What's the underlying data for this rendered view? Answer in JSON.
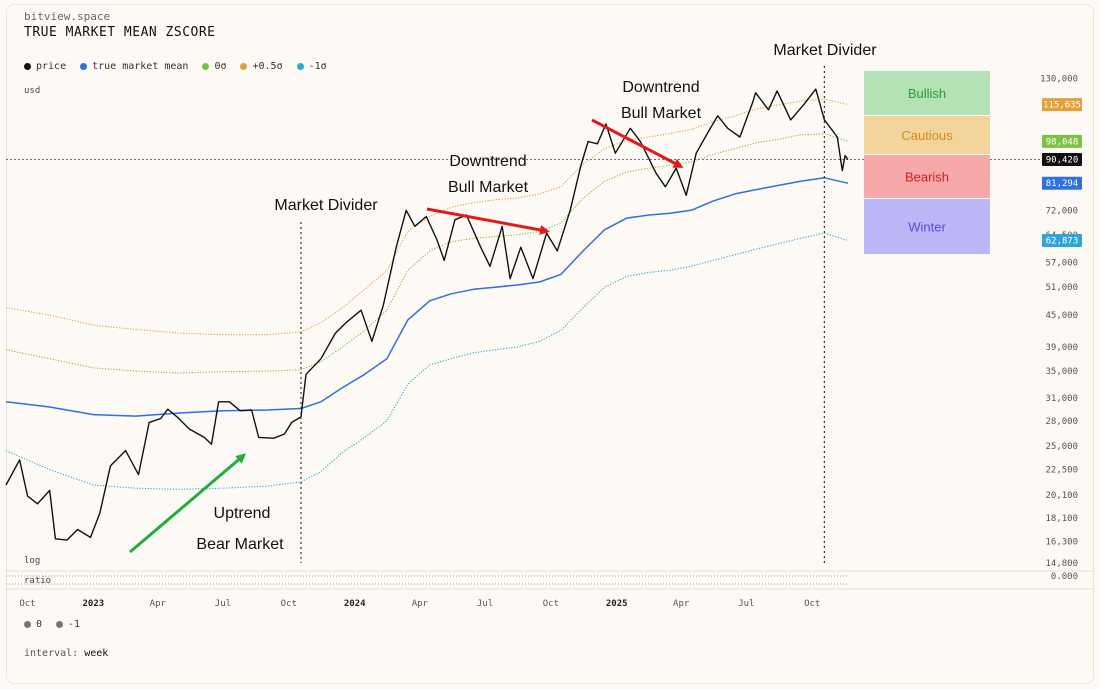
{
  "site": "bitview.space",
  "title": "TRUE MARKET MEAN ZSCORE",
  "unit": "usd",
  "scale_label": "log",
  "ratio_label": "ratio",
  "ratio_zero": "0.000",
  "interval_label": "interval:",
  "interval_value": "week",
  "legend": [
    {
      "label": "price",
      "color": "#111111"
    },
    {
      "label": "true market mean",
      "color": "#2f6fe0"
    },
    {
      "label": "0σ",
      "color": "#7cc241"
    },
    {
      "label": "+0.5σ",
      "color": "#e0a13a"
    },
    {
      "label": "-1σ",
      "color": "#2fa6d6"
    }
  ],
  "bottom_legend": [
    {
      "label": "0",
      "color": "#777777"
    },
    {
      "label": "-1",
      "color": "#777777"
    }
  ],
  "zones": [
    {
      "label": "Bullish",
      "bg": "#b4e2b6",
      "fg": "#2a9a3a"
    },
    {
      "label": "Cautious",
      "bg": "#f3d49c",
      "fg": "#d28f1e"
    },
    {
      "label": "Bearish",
      "bg": "#f7a9a9",
      "fg": "#d61c1c"
    },
    {
      "label": "Winter",
      "bg": "#bdb7f7",
      "fg": "#5a48d8"
    }
  ],
  "annotations": {
    "market_divider_1": "Market Divider",
    "market_divider_2": "Market Divider",
    "uptrend_l1": "Uptrend",
    "uptrend_l2": "Bear Market",
    "downtrend1_l1": "Downtrend",
    "downtrend1_l2": "Bull Market",
    "downtrend2_l1": "Downtrend",
    "downtrend2_l2": "Bull Market"
  },
  "chart_data": {
    "type": "line",
    "yscale": "log",
    "ylim": [
      14800,
      140000
    ],
    "x_range": [
      "2022-09-01",
      "2025-11-20"
    ],
    "x_ticks": [
      {
        "date": "2022-10-01",
        "label": "Oct"
      },
      {
        "date": "2023-01-01",
        "label": "2023",
        "year": true
      },
      {
        "date": "2023-04-01",
        "label": "Apr"
      },
      {
        "date": "2023-07-01",
        "label": "Jul"
      },
      {
        "date": "2023-10-01",
        "label": "Oct"
      },
      {
        "date": "2024-01-01",
        "label": "2024",
        "year": true
      },
      {
        "date": "2024-04-01",
        "label": "Apr"
      },
      {
        "date": "2024-07-01",
        "label": "Jul"
      },
      {
        "date": "2024-10-01",
        "label": "Oct"
      },
      {
        "date": "2025-01-01",
        "label": "2025",
        "year": true
      },
      {
        "date": "2025-04-01",
        "label": "Apr"
      },
      {
        "date": "2025-07-01",
        "label": "Jul"
      },
      {
        "date": "2025-10-01",
        "label": "Oct"
      }
    ],
    "y_ticks": [
      130000,
      72000,
      64500,
      57000,
      51000,
      45000,
      39000,
      35000,
      31000,
      28000,
      25000,
      22500,
      20100,
      18100,
      16300,
      14800
    ],
    "y_tick_labels": [
      "130,000",
      "72,000",
      "64,500",
      "57,000",
      "51,000",
      "45,000",
      "39,000",
      "35,000",
      "31,000",
      "28,000",
      "25,000",
      "22,500",
      "20,100",
      "18,100",
      "16,300",
      "14,800"
    ],
    "last_values": [
      {
        "label": "115,635",
        "value": 115635,
        "color": "#e0a13a"
      },
      {
        "label": "98,048",
        "value": 98048,
        "color": "#7cc241"
      },
      {
        "label": "90,420",
        "value": 90420,
        "color": "#111111"
      },
      {
        "label": "81,294",
        "value": 81294,
        "color": "#2f6fe0"
      },
      {
        "label": "62,873",
        "value": 62873,
        "color": "#2fa6d6"
      }
    ],
    "current_price_line": 90420,
    "market_dividers": [
      "2023-10-18",
      "2025-10-18"
    ],
    "series": [
      {
        "name": "price",
        "color": "#111111",
        "style": "solid",
        "points": [
          [
            "2022-09-01",
            21000
          ],
          [
            "2022-09-20",
            23500
          ],
          [
            "2022-10-01",
            20000
          ],
          [
            "2022-10-15",
            19300
          ],
          [
            "2022-11-01",
            20500
          ],
          [
            "2022-11-09",
            16500
          ],
          [
            "2022-11-25",
            16400
          ],
          [
            "2022-12-10",
            17200
          ],
          [
            "2022-12-28",
            16600
          ],
          [
            "2023-01-10",
            18500
          ],
          [
            "2023-01-25",
            22900
          ],
          [
            "2023-02-15",
            24500
          ],
          [
            "2023-03-05",
            22000
          ],
          [
            "2023-03-20",
            27800
          ],
          [
            "2023-04-05",
            28300
          ],
          [
            "2023-04-15",
            29500
          ],
          [
            "2023-04-28",
            28500
          ],
          [
            "2023-05-15",
            27000
          ],
          [
            "2023-06-05",
            26000
          ],
          [
            "2023-06-15",
            25200
          ],
          [
            "2023-06-25",
            30500
          ],
          [
            "2023-07-10",
            30500
          ],
          [
            "2023-07-25",
            29300
          ],
          [
            "2023-08-10",
            29400
          ],
          [
            "2023-08-20",
            26000
          ],
          [
            "2023-09-10",
            25900
          ],
          [
            "2023-09-25",
            26400
          ],
          [
            "2023-10-05",
            27800
          ],
          [
            "2023-10-18",
            28500
          ],
          [
            "2023-10-25",
            34500
          ],
          [
            "2023-11-15",
            37000
          ],
          [
            "2023-12-05",
            41500
          ],
          [
            "2023-12-20",
            43500
          ],
          [
            "2024-01-10",
            46000
          ],
          [
            "2024-01-25",
            40000
          ],
          [
            "2024-02-10",
            47000
          ],
          [
            "2024-02-28",
            61000
          ],
          [
            "2024-03-13",
            72000
          ],
          [
            "2024-03-25",
            67000
          ],
          [
            "2024-04-10",
            70000
          ],
          [
            "2024-04-25",
            63000
          ],
          [
            "2024-05-05",
            57500
          ],
          [
            "2024-05-20",
            69000
          ],
          [
            "2024-06-05",
            70500
          ],
          [
            "2024-06-25",
            61000
          ],
          [
            "2024-07-08",
            56000
          ],
          [
            "2024-07-25",
            67000
          ],
          [
            "2024-08-05",
            53000
          ],
          [
            "2024-08-20",
            61000
          ],
          [
            "2024-09-06",
            53000
          ],
          [
            "2024-09-25",
            65000
          ],
          [
            "2024-10-10",
            60000
          ],
          [
            "2024-10-28",
            72000
          ],
          [
            "2024-11-12",
            88000
          ],
          [
            "2024-11-22",
            98000
          ],
          [
            "2024-12-05",
            97000
          ],
          [
            "2024-12-17",
            106000
          ],
          [
            "2024-12-30",
            93000
          ],
          [
            "2025-01-20",
            104000
          ],
          [
            "2025-02-03",
            98000
          ],
          [
            "2025-02-25",
            85000
          ],
          [
            "2025-03-10",
            80000
          ],
          [
            "2025-03-25",
            87000
          ],
          [
            "2025-04-08",
            77000
          ],
          [
            "2025-04-22",
            93000
          ],
          [
            "2025-05-10",
            103000
          ],
          [
            "2025-05-22",
            110000
          ],
          [
            "2025-06-05",
            104000
          ],
          [
            "2025-06-22",
            100000
          ],
          [
            "2025-07-10",
            117000
          ],
          [
            "2025-07-14",
            122000
          ],
          [
            "2025-08-01",
            113000
          ],
          [
            "2025-08-13",
            123000
          ],
          [
            "2025-09-01",
            108000
          ],
          [
            "2025-09-20",
            116000
          ],
          [
            "2025-10-06",
            124000
          ],
          [
            "2025-10-18",
            108000
          ],
          [
            "2025-11-05",
            100000
          ],
          [
            "2025-11-12",
            86000
          ],
          [
            "2025-11-16",
            92000
          ],
          [
            "2025-11-20",
            90420
          ]
        ]
      },
      {
        "name": "true market mean",
        "color": "#2f6fe0",
        "style": "solid",
        "points": [
          [
            "2022-09-01",
            30500
          ],
          [
            "2022-11-01",
            29800
          ],
          [
            "2023-01-01",
            28800
          ],
          [
            "2023-03-01",
            28600
          ],
          [
            "2023-05-01",
            29000
          ],
          [
            "2023-07-01",
            29300
          ],
          [
            "2023-09-01",
            29400
          ],
          [
            "2023-10-18",
            29600
          ],
          [
            "2023-11-15",
            30500
          ],
          [
            "2023-12-15",
            32500
          ],
          [
            "2024-01-15",
            34500
          ],
          [
            "2024-02-15",
            37000
          ],
          [
            "2024-03-15",
            44000
          ],
          [
            "2024-04-15",
            48000
          ],
          [
            "2024-05-15",
            49500
          ],
          [
            "2024-06-15",
            50500
          ],
          [
            "2024-07-15",
            51000
          ],
          [
            "2024-08-15",
            51500
          ],
          [
            "2024-09-15",
            52200
          ],
          [
            "2024-10-15",
            54000
          ],
          [
            "2024-11-15",
            60000
          ],
          [
            "2024-12-15",
            66000
          ],
          [
            "2025-01-15",
            69500
          ],
          [
            "2025-02-15",
            70500
          ],
          [
            "2025-03-15",
            71000
          ],
          [
            "2025-04-15",
            72000
          ],
          [
            "2025-05-15",
            75000
          ],
          [
            "2025-06-15",
            77500
          ],
          [
            "2025-07-15",
            79000
          ],
          [
            "2025-08-15",
            80500
          ],
          [
            "2025-09-15",
            82000
          ],
          [
            "2025-10-18",
            83300
          ],
          [
            "2025-11-20",
            81294
          ]
        ]
      },
      {
        "name": "0σ",
        "color": "#7cc241",
        "style": "dotted",
        "points": [
          [
            "2022-09-01",
            38500
          ],
          [
            "2022-11-01",
            37000
          ],
          [
            "2023-01-01",
            35500
          ],
          [
            "2023-03-01",
            35000
          ],
          [
            "2023-05-01",
            34700
          ],
          [
            "2023-07-01",
            34900
          ],
          [
            "2023-09-01",
            35000
          ],
          [
            "2023-10-18",
            35200
          ],
          [
            "2023-11-15",
            36500
          ],
          [
            "2023-12-15",
            39000
          ],
          [
            "2024-01-15",
            42000
          ],
          [
            "2024-02-15",
            46000
          ],
          [
            "2024-03-15",
            55000
          ],
          [
            "2024-04-15",
            60000
          ],
          [
            "2024-05-15",
            62500
          ],
          [
            "2024-06-15",
            63500
          ],
          [
            "2024-07-15",
            64000
          ],
          [
            "2024-08-15",
            64500
          ],
          [
            "2024-09-15",
            65500
          ],
          [
            "2024-10-15",
            68000
          ],
          [
            "2024-11-15",
            76000
          ],
          [
            "2024-12-15",
            82000
          ],
          [
            "2025-01-15",
            85500
          ],
          [
            "2025-02-15",
            87000
          ],
          [
            "2025-03-15",
            88000
          ],
          [
            "2025-04-15",
            89500
          ],
          [
            "2025-05-15",
            92500
          ],
          [
            "2025-06-15",
            95000
          ],
          [
            "2025-07-15",
            97500
          ],
          [
            "2025-08-15",
            99000
          ],
          [
            "2025-09-15",
            101000
          ],
          [
            "2025-10-18",
            101500
          ],
          [
            "2025-11-20",
            98048
          ]
        ]
      },
      {
        "name": "+0.5σ",
        "color": "#e0a13a",
        "style": "dotted",
        "points": [
          [
            "2022-09-01",
            46500
          ],
          [
            "2022-11-01",
            45000
          ],
          [
            "2023-01-01",
            43000
          ],
          [
            "2023-03-01",
            42200
          ],
          [
            "2023-05-01",
            41500
          ],
          [
            "2023-07-01",
            41200
          ],
          [
            "2023-09-01",
            41200
          ],
          [
            "2023-10-18",
            41700
          ],
          [
            "2023-11-15",
            43500
          ],
          [
            "2023-12-15",
            46500
          ],
          [
            "2024-01-15",
            50500
          ],
          [
            "2024-02-15",
            55000
          ],
          [
            "2024-03-15",
            65500
          ],
          [
            "2024-04-15",
            70000
          ],
          [
            "2024-05-15",
            73000
          ],
          [
            "2024-06-15",
            74500
          ],
          [
            "2024-07-15",
            75500
          ],
          [
            "2024-08-15",
            76000
          ],
          [
            "2024-09-15",
            77500
          ],
          [
            "2024-10-15",
            80000
          ],
          [
            "2024-11-15",
            88500
          ],
          [
            "2024-12-15",
            95000
          ],
          [
            "2025-01-15",
            98500
          ],
          [
            "2025-02-15",
            100000
          ],
          [
            "2025-03-15",
            101500
          ],
          [
            "2025-04-15",
            103500
          ],
          [
            "2025-05-15",
            107000
          ],
          [
            "2025-06-15",
            110000
          ],
          [
            "2025-07-15",
            113500
          ],
          [
            "2025-08-15",
            115500
          ],
          [
            "2025-09-15",
            117500
          ],
          [
            "2025-10-18",
            118500
          ],
          [
            "2025-11-20",
            115635
          ]
        ]
      },
      {
        "name": "-1σ",
        "color": "#2fa6d6",
        "style": "dotted",
        "points": [
          [
            "2022-09-01",
            24500
          ],
          [
            "2022-11-01",
            22500
          ],
          [
            "2023-01-01",
            21000
          ],
          [
            "2023-03-01",
            20700
          ],
          [
            "2023-05-01",
            20600
          ],
          [
            "2023-07-01",
            20700
          ],
          [
            "2023-09-01",
            20900
          ],
          [
            "2023-10-18",
            21300
          ],
          [
            "2023-11-15",
            22300
          ],
          [
            "2023-12-15",
            24300
          ],
          [
            "2024-01-15",
            26000
          ],
          [
            "2024-02-15",
            28000
          ],
          [
            "2024-03-15",
            33000
          ],
          [
            "2024-04-15",
            36000
          ],
          [
            "2024-05-15",
            37000
          ],
          [
            "2024-06-15",
            38000
          ],
          [
            "2024-07-15",
            38500
          ],
          [
            "2024-08-15",
            39000
          ],
          [
            "2024-09-15",
            40000
          ],
          [
            "2024-10-15",
            42000
          ],
          [
            "2024-11-15",
            46500
          ],
          [
            "2024-12-15",
            51000
          ],
          [
            "2025-01-15",
            53500
          ],
          [
            "2025-02-15",
            54500
          ],
          [
            "2025-03-15",
            55000
          ],
          [
            "2025-04-15",
            56000
          ],
          [
            "2025-05-15",
            57500
          ],
          [
            "2025-06-15",
            59000
          ],
          [
            "2025-07-15",
            60500
          ],
          [
            "2025-08-15",
            62000
          ],
          [
            "2025-09-15",
            63500
          ],
          [
            "2025-10-18",
            65000
          ],
          [
            "2025-11-20",
            62873
          ]
        ]
      }
    ]
  }
}
